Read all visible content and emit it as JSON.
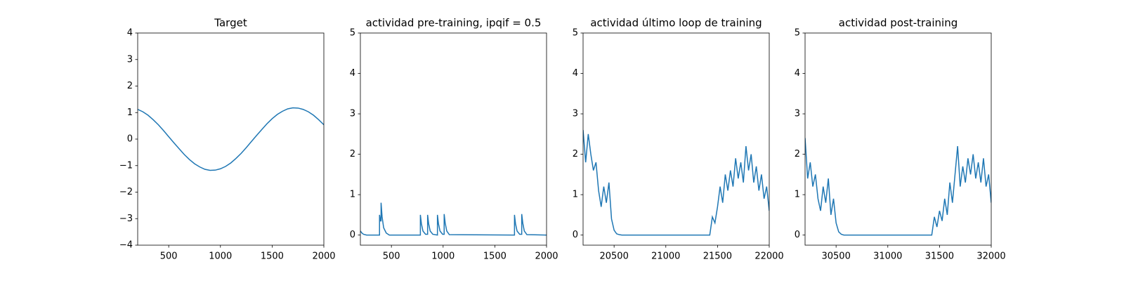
{
  "chart_data": [
    {
      "type": "line",
      "title": "Target",
      "color": "#1f77b4",
      "x": [
        200,
        250,
        300,
        350,
        400,
        450,
        500,
        550,
        600,
        650,
        700,
        750,
        800,
        850,
        900,
        950,
        1000,
        1050,
        1100,
        1150,
        1200,
        1250,
        1300,
        1350,
        1400,
        1450,
        1500,
        1550,
        1600,
        1650,
        1700,
        1750,
        1800,
        1850,
        1900,
        1950,
        2000
      ],
      "values": [
        1.12,
        1.03,
        0.9,
        0.73,
        0.54,
        0.32,
        0.09,
        -0.14,
        -0.36,
        -0.58,
        -0.77,
        -0.93,
        -1.05,
        -1.14,
        -1.18,
        -1.17,
        -1.12,
        -1.03,
        -0.9,
        -0.73,
        -0.54,
        -0.32,
        -0.09,
        0.14,
        0.36,
        0.58,
        0.77,
        0.93,
        1.05,
        1.14,
        1.18,
        1.17,
        1.12,
        1.03,
        0.9,
        0.73,
        0.54
      ],
      "xlim": [
        200,
        2000
      ],
      "xticks": [
        500,
        1000,
        1500,
        2000
      ],
      "ylim": [
        -4,
        4
      ],
      "yticks": [
        {
          "value": -4,
          "label": "−4"
        },
        {
          "value": -3,
          "label": "−3"
        },
        {
          "value": -2,
          "label": "−2"
        },
        {
          "value": -1,
          "label": "−1"
        },
        0,
        1,
        2,
        3,
        4
      ]
    },
    {
      "type": "line",
      "title": "actividad pre-training, ipqif = 0.5",
      "color": "#1f77b4",
      "x": [
        200,
        215,
        230,
        260,
        385,
        385,
        395,
        400,
        400,
        410,
        425,
        450,
        480,
        780,
        780,
        790,
        805,
        830,
        850,
        850,
        860,
        875,
        900,
        945,
        945,
        955,
        970,
        995,
        1010,
        1010,
        1020,
        1035,
        1060,
        1690,
        1690,
        1700,
        1715,
        1740,
        1760,
        1760,
        1770,
        1785,
        1810,
        2000
      ],
      "values": [
        0.1,
        0.05,
        0.02,
        0,
        0,
        0.5,
        0.35,
        0.35,
        0.8,
        0.45,
        0.18,
        0.05,
        0,
        0,
        0.5,
        0.28,
        0.1,
        0.02,
        0.02,
        0.5,
        0.28,
        0.1,
        0.02,
        0,
        0.5,
        0.28,
        0.1,
        0.02,
        0.02,
        0.52,
        0.3,
        0.1,
        0.01,
        0,
        0.5,
        0.28,
        0.1,
        0.02,
        0.02,
        0.52,
        0.3,
        0.1,
        0.01,
        0
      ],
      "xlim": [
        200,
        2000
      ],
      "xticks": [
        500,
        1000,
        1500,
        2000
      ],
      "ylim": [
        -0.25,
        5
      ],
      "yticks": [
        0,
        1,
        2,
        3,
        4,
        5
      ]
    },
    {
      "type": "line",
      "title": "actividad último loop de training",
      "color": "#1f77b4",
      "x": [
        20200,
        20225,
        20250,
        20275,
        20300,
        20325,
        20350,
        20375,
        20400,
        20425,
        20450,
        20475,
        20500,
        20525,
        20550,
        20575,
        20600,
        20625,
        20650,
        20675,
        20700,
        20725,
        20750,
        20775,
        20800,
        20825,
        20850,
        20875,
        20900,
        20925,
        20950,
        20975,
        21000,
        21025,
        21050,
        21075,
        21100,
        21125,
        21150,
        21175,
        21200,
        21225,
        21250,
        21275,
        21300,
        21325,
        21350,
        21375,
        21400,
        21425,
        21450,
        21475,
        21500,
        21525,
        21550,
        21575,
        21600,
        21625,
        21650,
        21675,
        21700,
        21725,
        21750,
        21775,
        21800,
        21825,
        21850,
        21875,
        21900,
        21925,
        21950,
        21975,
        22000
      ],
      "values": [
        2.6,
        1.8,
        2.5,
        2.0,
        1.6,
        1.8,
        1.1,
        0.7,
        1.2,
        0.8,
        1.3,
        0.4,
        0.12,
        0.03,
        0.01,
        0,
        0,
        0,
        0,
        0,
        0,
        0,
        0,
        0,
        0,
        0,
        0,
        0,
        0,
        0,
        0,
        0,
        0,
        0,
        0,
        0,
        0,
        0,
        0,
        0,
        0,
        0,
        0,
        0,
        0,
        0,
        0,
        0,
        0,
        0,
        0.45,
        0.3,
        0.7,
        1.2,
        0.8,
        1.5,
        1.1,
        1.6,
        1.2,
        1.9,
        1.4,
        1.8,
        1.3,
        2.2,
        1.6,
        2.0,
        1.3,
        1.7,
        1.1,
        1.5,
        0.9,
        1.2,
        0.6
      ],
      "xlim": [
        20200,
        22000
      ],
      "xticks": [
        20500,
        21000,
        21500,
        22000
      ],
      "ylim": [
        -0.25,
        5
      ],
      "yticks": [
        0,
        1,
        2,
        3,
        4,
        5
      ]
    },
    {
      "type": "line",
      "title": "actividad post-training",
      "color": "#1f77b4",
      "x": [
        30200,
        30225,
        30250,
        30275,
        30300,
        30325,
        30350,
        30375,
        30400,
        30425,
        30450,
        30475,
        30500,
        30525,
        30550,
        30575,
        30600,
        30625,
        30650,
        30675,
        30700,
        30725,
        30750,
        30775,
        30800,
        30825,
        30850,
        30875,
        30900,
        30925,
        30950,
        30975,
        31000,
        31025,
        31050,
        31075,
        31100,
        31125,
        31150,
        31175,
        31200,
        31225,
        31250,
        31275,
        31300,
        31325,
        31350,
        31375,
        31400,
        31425,
        31450,
        31475,
        31500,
        31525,
        31550,
        31575,
        31600,
        31625,
        31650,
        31675,
        31700,
        31725,
        31750,
        31775,
        31800,
        31825,
        31850,
        31875,
        31900,
        31925,
        31950,
        31975,
        32000
      ],
      "values": [
        2.4,
        1.4,
        1.8,
        1.2,
        1.5,
        0.9,
        0.6,
        1.2,
        0.8,
        1.4,
        0.5,
        0.9,
        0.3,
        0.08,
        0.02,
        0,
        0,
        0,
        0,
        0,
        0,
        0,
        0,
        0,
        0,
        0,
        0,
        0,
        0,
        0,
        0,
        0,
        0,
        0,
        0,
        0,
        0,
        0,
        0,
        0,
        0,
        0,
        0,
        0,
        0,
        0,
        0,
        0,
        0,
        0,
        0.45,
        0.2,
        0.6,
        0.35,
        0.9,
        0.5,
        1.3,
        0.8,
        1.5,
        2.2,
        1.2,
        1.7,
        1.3,
        1.9,
        1.5,
        2.0,
        1.4,
        1.8,
        1.3,
        1.9,
        1.2,
        1.5,
        0.8
      ],
      "xlim": [
        30200,
        32000
      ],
      "xticks": [
        30500,
        31000,
        31500,
        32000
      ],
      "ylim": [
        -0.25,
        5
      ],
      "yticks": [
        0,
        1,
        2,
        3,
        4,
        5
      ]
    }
  ]
}
